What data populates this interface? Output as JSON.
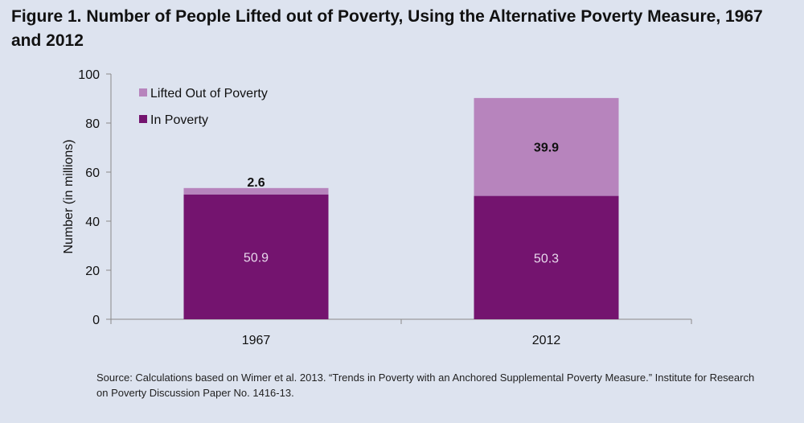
{
  "figure": {
    "title": "Figure 1. Number of People Lifted out of Poverty, Using the Alternative Poverty Measure, 1967 and 2012",
    "source": "Source:  Calculations based on Wimer et al. 2013. “Trends in Poverty with an Anchored Supplemental Poverty Measure.” Institute for Research on Poverty Discussion Paper No. 1416-13."
  },
  "chart_data": {
    "type": "bar",
    "stacked": true,
    "title": "Figure 1. Number of People Lifted out of Poverty, Using the Alternative Poverty Measure, 1967 and 2012",
    "categories": [
      "1967",
      "2012"
    ],
    "series": [
      {
        "name": "In Poverty",
        "values": [
          50.9,
          50.3
        ],
        "color": "#74146f",
        "label_color": "#e8d8ec"
      },
      {
        "name": "Lifted Out of Poverty",
        "values": [
          2.6,
          39.9
        ],
        "color": "#b784bd",
        "label_color": "#111111"
      }
    ],
    "data_labels": [
      {
        "series": "In Poverty",
        "category": "1967",
        "text": "50.9"
      },
      {
        "series": "Lifted Out of Poverty",
        "category": "1967",
        "text": "2.6"
      },
      {
        "series": "In Poverty",
        "category": "2012",
        "text": "50.3"
      },
      {
        "series": "Lifted Out of Poverty",
        "category": "2012",
        "text": "39.9"
      }
    ],
    "xlabel": "",
    "ylabel": "Number (in millions)",
    "ylim": [
      0,
      100
    ],
    "yticks": [
      0,
      20,
      40,
      60,
      80,
      100
    ],
    "legend": {
      "position": "top-left",
      "entries": [
        "Lifted Out of Poverty",
        "In Poverty"
      ]
    },
    "grid": false
  }
}
